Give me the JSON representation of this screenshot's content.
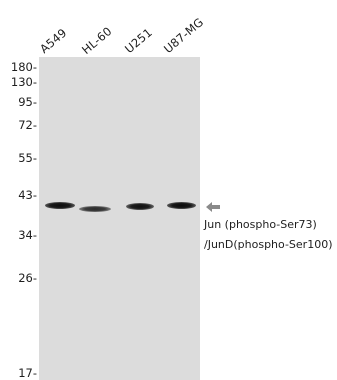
{
  "figure": {
    "lanes": [
      "A549",
      "HL-60",
      "U251",
      "U87-MG"
    ],
    "markers": [
      "180-",
      "130-",
      "95-",
      "72-",
      "55-",
      "43-",
      "34-",
      "26-",
      "17-"
    ],
    "band_label_line1": "Jun (phospho-Ser73)",
    "band_label_line2": "/JunD(phospho-Ser100)",
    "colors": {
      "panel": "#dcdcdc",
      "band": "#111111",
      "arrow": "#8a8a8a"
    },
    "icons": {
      "band_arrow": "left-arrow-icon"
    }
  }
}
